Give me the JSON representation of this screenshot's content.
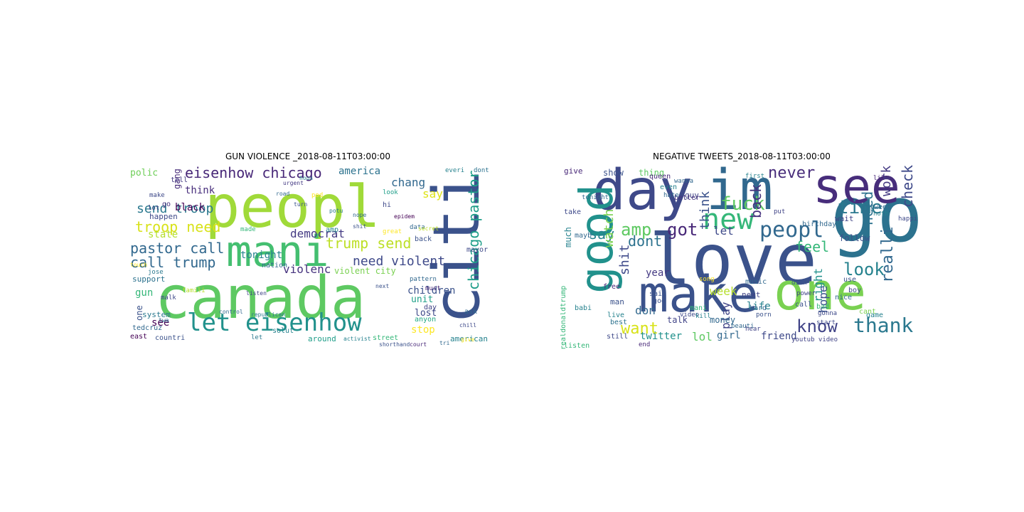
{
  "panels": [
    {
      "title": "GUN VIOLENCE _2018-08-11T03:00:00",
      "words": [
        {
          "text": "peopl",
          "color": "#a0da39"
        },
        {
          "text": "canada",
          "color": "#5ec962"
        },
        {
          "text": "mani",
          "color": "#44bf70"
        },
        {
          "text": "citi",
          "color": "#3b528b"
        },
        {
          "text": "let eisenhow",
          "color": "#21918c"
        },
        {
          "text": "eisenhow chicago",
          "color": "#482878"
        },
        {
          "text": "trump send",
          "color": "#bddf26"
        },
        {
          "text": "troop need",
          "color": "#d8e219"
        },
        {
          "text": "send troop",
          "color": "#2a788e"
        },
        {
          "text": "pastor call",
          "color": "#31688e"
        },
        {
          "text": "call trump",
          "color": "#31688e"
        },
        {
          "text": "chicago pastor",
          "color": "#1f9e89"
        },
        {
          "text": "need violent",
          "color": "#3e4989"
        },
        {
          "text": "violenc",
          "color": "#46337e"
        },
        {
          "text": "democrat",
          "color": "#443a83"
        },
        {
          "text": "america",
          "color": "#2c728e"
        },
        {
          "text": "chang",
          "color": "#31688e"
        },
        {
          "text": "think",
          "color": "#472d7b"
        },
        {
          "text": "black",
          "color": "#440154"
        },
        {
          "text": "state",
          "color": "#b5de2b"
        },
        {
          "text": "tonight",
          "color": "#26828e"
        },
        {
          "text": "children",
          "color": "#3b528b"
        },
        {
          "text": "polic",
          "color": "#6ece58"
        },
        {
          "text": "gun",
          "color": "#35b779"
        },
        {
          "text": "see",
          "color": "#440154"
        },
        {
          "text": "stop",
          "color": "#fde725"
        },
        {
          "text": "lost",
          "color": "#3e4989"
        },
        {
          "text": "unit",
          "color": "#1fa088"
        },
        {
          "text": "violent city",
          "color": "#7ad151"
        },
        {
          "text": "say",
          "color": "#dde318"
        },
        {
          "text": "gang",
          "color": "#472c7a"
        },
        {
          "text": "support",
          "color": "#2c728e"
        },
        {
          "text": "one",
          "color": "#3b528b"
        },
        {
          "text": "system",
          "color": "#2a788e"
        },
        {
          "text": "happen",
          "color": "#3e4989"
        },
        {
          "text": "tedcruz",
          "color": "#31688e"
        },
        {
          "text": "american",
          "color": "#26828e"
        },
        {
          "text": "around",
          "color": "#1f9e89"
        },
        {
          "text": "countri",
          "color": "#3b528b"
        },
        {
          "text": "east",
          "color": "#440154"
        },
        {
          "text": "anyon",
          "color": "#22a884"
        },
        {
          "text": "ask",
          "color": "#31688e"
        },
        {
          "text": "day",
          "color": "#414487"
        },
        {
          "text": "must",
          "color": "#482878"
        },
        {
          "text": "mayor",
          "color": "#3e4989"
        },
        {
          "text": "back",
          "color": "#3b528b"
        },
        {
          "text": "dont",
          "color": "#2c728e"
        },
        {
          "text": "everi",
          "color": "#26828e"
        },
        {
          "text": "nation",
          "color": "#31688e"
        },
        {
          "text": "made",
          "color": "#35b779"
        },
        {
          "text": "amp",
          "color": "#26828e"
        },
        {
          "text": "hi",
          "color": "#3e4989"
        },
        {
          "text": "look",
          "color": "#1f9e89"
        },
        {
          "text": "data",
          "color": "#31688e"
        },
        {
          "text": "give",
          "color": "#fde725"
        },
        {
          "text": "tell",
          "color": "#443a83"
        },
        {
          "text": "make",
          "color": "#3e4989"
        },
        {
          "text": "go",
          "color": "#46327e"
        },
        {
          "text": "lot",
          "color": "#414487"
        },
        {
          "text": "touch",
          "color": "#fde725"
        },
        {
          "text": "famili",
          "color": "#b8de29"
        },
        {
          "text": "tri",
          "color": "#31688e"
        },
        {
          "text": "solut",
          "color": "#26828e"
        },
        {
          "text": "let",
          "color": "#2a788e"
        },
        {
          "text": "activist",
          "color": "#26828e"
        },
        {
          "text": "street",
          "color": "#35b779"
        },
        {
          "text": "shorthand",
          "color": "#3b528b"
        },
        {
          "text": "twa",
          "color": "#31688e"
        },
        {
          "text": "malk",
          "color": "#3e4989"
        },
        {
          "text": "republican",
          "color": "#2a788e"
        },
        {
          "text": "control",
          "color": "#31688e"
        },
        {
          "text": "jose",
          "color": "#2a788e"
        },
        {
          "text": "urgent",
          "color": "#443a83"
        },
        {
          "text": "road",
          "color": "#31688e"
        },
        {
          "text": "turn",
          "color": "#3b528b"
        },
        {
          "text": "hous",
          "color": "#26828e"
        },
        {
          "text": "pod",
          "color": "#fde725"
        },
        {
          "text": "potu",
          "color": "#2a788e"
        },
        {
          "text": "nope",
          "color": "#31688e"
        },
        {
          "text": "shit",
          "color": "#3b528b"
        },
        {
          "text": "epidem",
          "color": "#440154"
        },
        {
          "text": "great",
          "color": "#fde725"
        },
        {
          "text": "secret",
          "color": "#bddf26"
        },
        {
          "text": "pattern",
          "color": "#31688e"
        },
        {
          "text": "next",
          "color": "#3b528b"
        },
        {
          "text": "listen",
          "color": "#414487"
        },
        {
          "text": "court",
          "color": "#482878"
        },
        {
          "text": "chill",
          "color": "#3e4989"
        }
      ]
    },
    {
      "title": "NEGATIVE TWEETS_2018-08-11T03:00:00",
      "words": [
        {
          "text": "love",
          "color": "#3b528b"
        },
        {
          "text": "go",
          "color": "#2c728e"
        },
        {
          "text": "see",
          "color": "#472d7b"
        },
        {
          "text": "day",
          "color": "#3e4989"
        },
        {
          "text": "im",
          "color": "#31688e"
        },
        {
          "text": "make",
          "color": "#3b528b"
        },
        {
          "text": "one",
          "color": "#7ad151"
        },
        {
          "text": "good",
          "color": "#21918c"
        },
        {
          "text": "new",
          "color": "#35b779"
        },
        {
          "text": "peopl",
          "color": "#31688e"
        },
        {
          "text": "got",
          "color": "#482878"
        },
        {
          "text": "fuck",
          "color": "#5ec962"
        },
        {
          "text": "time",
          "color": "#2a788e"
        },
        {
          "text": "amp",
          "color": "#5ec962"
        },
        {
          "text": "dont",
          "color": "#2c728e"
        },
        {
          "text": "never",
          "color": "#472c7a"
        },
        {
          "text": "know",
          "color": "#414487"
        },
        {
          "text": "thank",
          "color": "#2a788e"
        },
        {
          "text": "look",
          "color": "#26828e"
        },
        {
          "text": "feel",
          "color": "#35b779"
        },
        {
          "text": "want",
          "color": "#d8e219"
        },
        {
          "text": "realli",
          "color": "#31688e"
        },
        {
          "text": "need",
          "color": "#2c728e"
        },
        {
          "text": "check",
          "color": "#3e4989"
        },
        {
          "text": "work",
          "color": "#443a83"
        },
        {
          "text": "back",
          "color": "#46337e"
        },
        {
          "text": "think",
          "color": "#3b528b"
        },
        {
          "text": "say",
          "color": "#26828e"
        },
        {
          "text": "watch",
          "color": "#7ad151"
        },
        {
          "text": "shit",
          "color": "#3e4989"
        },
        {
          "text": "week",
          "color": "#b5de2b"
        },
        {
          "text": "year",
          "color": "#443a83"
        },
        {
          "text": "don",
          "color": "#31688e"
        },
        {
          "text": "let",
          "color": "#3e4989"
        },
        {
          "text": "right",
          "color": "#21918c"
        },
        {
          "text": "hope",
          "color": "#3b528b"
        },
        {
          "text": "play",
          "color": "#414487"
        },
        {
          "text": "life",
          "color": "#26828e"
        },
        {
          "text": "twitter",
          "color": "#21918c"
        },
        {
          "text": "lol",
          "color": "#5ec962"
        },
        {
          "text": "girl",
          "color": "#31688e"
        },
        {
          "text": "friend",
          "color": "#3e4989"
        },
        {
          "text": "money",
          "color": "#31688e"
        },
        {
          "text": "talk",
          "color": "#414487"
        },
        {
          "text": "give",
          "color": "#482878"
        },
        {
          "text": "show",
          "color": "#3b528b"
        },
        {
          "text": "thing",
          "color": "#5ec962"
        },
        {
          "text": "much",
          "color": "#26828e"
        },
        {
          "text": "realdonaldtrump",
          "color": "#35b779"
        },
        {
          "text": "take",
          "color": "#3e4989"
        },
        {
          "text": "tonight",
          "color": "#31688e"
        },
        {
          "text": "even",
          "color": "#26828e"
        },
        {
          "text": "free",
          "color": "#482878"
        },
        {
          "text": "man",
          "color": "#3b528b"
        },
        {
          "text": "guy",
          "color": "#414487"
        },
        {
          "text": "follow",
          "color": "#3b528b"
        },
        {
          "text": "better",
          "color": "#46337e"
        },
        {
          "text": "birthday",
          "color": "#31688e"
        },
        {
          "text": "queen",
          "color": "#482878"
        },
        {
          "text": "hate",
          "color": "#31688e"
        },
        {
          "text": "game",
          "color": "#26828e"
        },
        {
          "text": "next",
          "color": "#414487"
        },
        {
          "text": "song",
          "color": "#fde725"
        },
        {
          "text": "said",
          "color": "#3b528b"
        },
        {
          "text": "best",
          "color": "#2c728e"
        },
        {
          "text": "listen",
          "color": "#35b779"
        },
        {
          "text": "still",
          "color": "#3e4989"
        },
        {
          "text": "nice",
          "color": "#31688e"
        },
        {
          "text": "boy",
          "color": "#414487"
        },
        {
          "text": "cant",
          "color": "#7ad151"
        },
        {
          "text": "god",
          "color": "#3b528b"
        },
        {
          "text": "babi",
          "color": "#26828e"
        },
        {
          "text": "mayb",
          "color": "#31688e"
        },
        {
          "text": "wait",
          "color": "#414487"
        },
        {
          "text": "use",
          "color": "#3b528b"
        },
        {
          "text": "hard",
          "color": "#31688e"
        },
        {
          "text": "live",
          "color": "#26828e"
        },
        {
          "text": "mani",
          "color": "#35b779"
        },
        {
          "text": "music",
          "color": "#31688e"
        },
        {
          "text": "video",
          "color": "#3e4989"
        },
        {
          "text": "end",
          "color": "#482878"
        },
        {
          "text": "youtub video",
          "color": "#414487"
        },
        {
          "text": "call",
          "color": "#3b528b"
        },
        {
          "text": "gonna",
          "color": "#3e4989"
        },
        {
          "text": "kill",
          "color": "#26828e"
        },
        {
          "text": "beauti",
          "color": "#31688e"
        },
        {
          "text": "power",
          "color": "#414487"
        },
        {
          "text": "didn",
          "color": "#3b528b"
        },
        {
          "text": "noth",
          "color": "#26828e"
        },
        {
          "text": "happi",
          "color": "#3e4989"
        },
        {
          "text": "tweet",
          "color": "#31688e"
        },
        {
          "text": "hear",
          "color": "#414487"
        },
        {
          "text": "lil",
          "color": "#482878"
        },
        {
          "text": "porn",
          "color": "#3b528b"
        },
        {
          "text": "wanna",
          "color": "#31688e"
        },
        {
          "text": "first",
          "color": "#26828e"
        },
        {
          "text": "start",
          "color": "#3e4989"
        },
        {
          "text": "put",
          "color": "#414487"
        },
        {
          "text": "bad",
          "color": "#35b779"
        }
      ]
    }
  ]
}
